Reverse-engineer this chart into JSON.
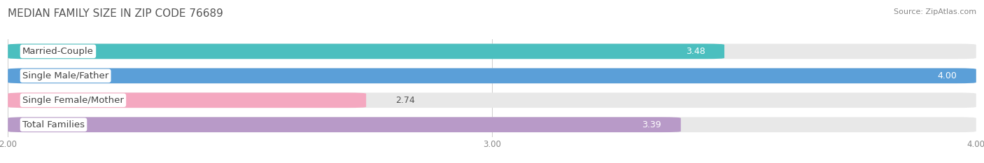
{
  "title": "MEDIAN FAMILY SIZE IN ZIP CODE 76689",
  "source": "Source: ZipAtlas.com",
  "categories": [
    "Married-Couple",
    "Single Male/Father",
    "Single Female/Mother",
    "Total Families"
  ],
  "values": [
    3.48,
    4.0,
    2.74,
    3.39
  ],
  "bar_colors": [
    "#4BBFBF",
    "#5B9FD8",
    "#F4A8C0",
    "#B89AC8"
  ],
  "bar_bg_color": "#E8E8E8",
  "xmin": 2.0,
  "xmax": 4.0,
  "data_min": 0.0,
  "data_max": 4.0,
  "xticks": [
    2.0,
    3.0,
    4.0
  ],
  "xtick_labels": [
    "2.00",
    "3.00",
    "4.00"
  ],
  "bar_height": 0.62,
  "label_fontsize": 9.5,
  "value_fontsize": 9,
  "title_fontsize": 11,
  "source_fontsize": 8,
  "value_text_colors": [
    "white",
    "white",
    "#555555",
    "white"
  ],
  "value_label_offsets": [
    0.04,
    0.04,
    0.06,
    0.04
  ],
  "value_label_ha": [
    "right",
    "right",
    "left",
    "right"
  ]
}
